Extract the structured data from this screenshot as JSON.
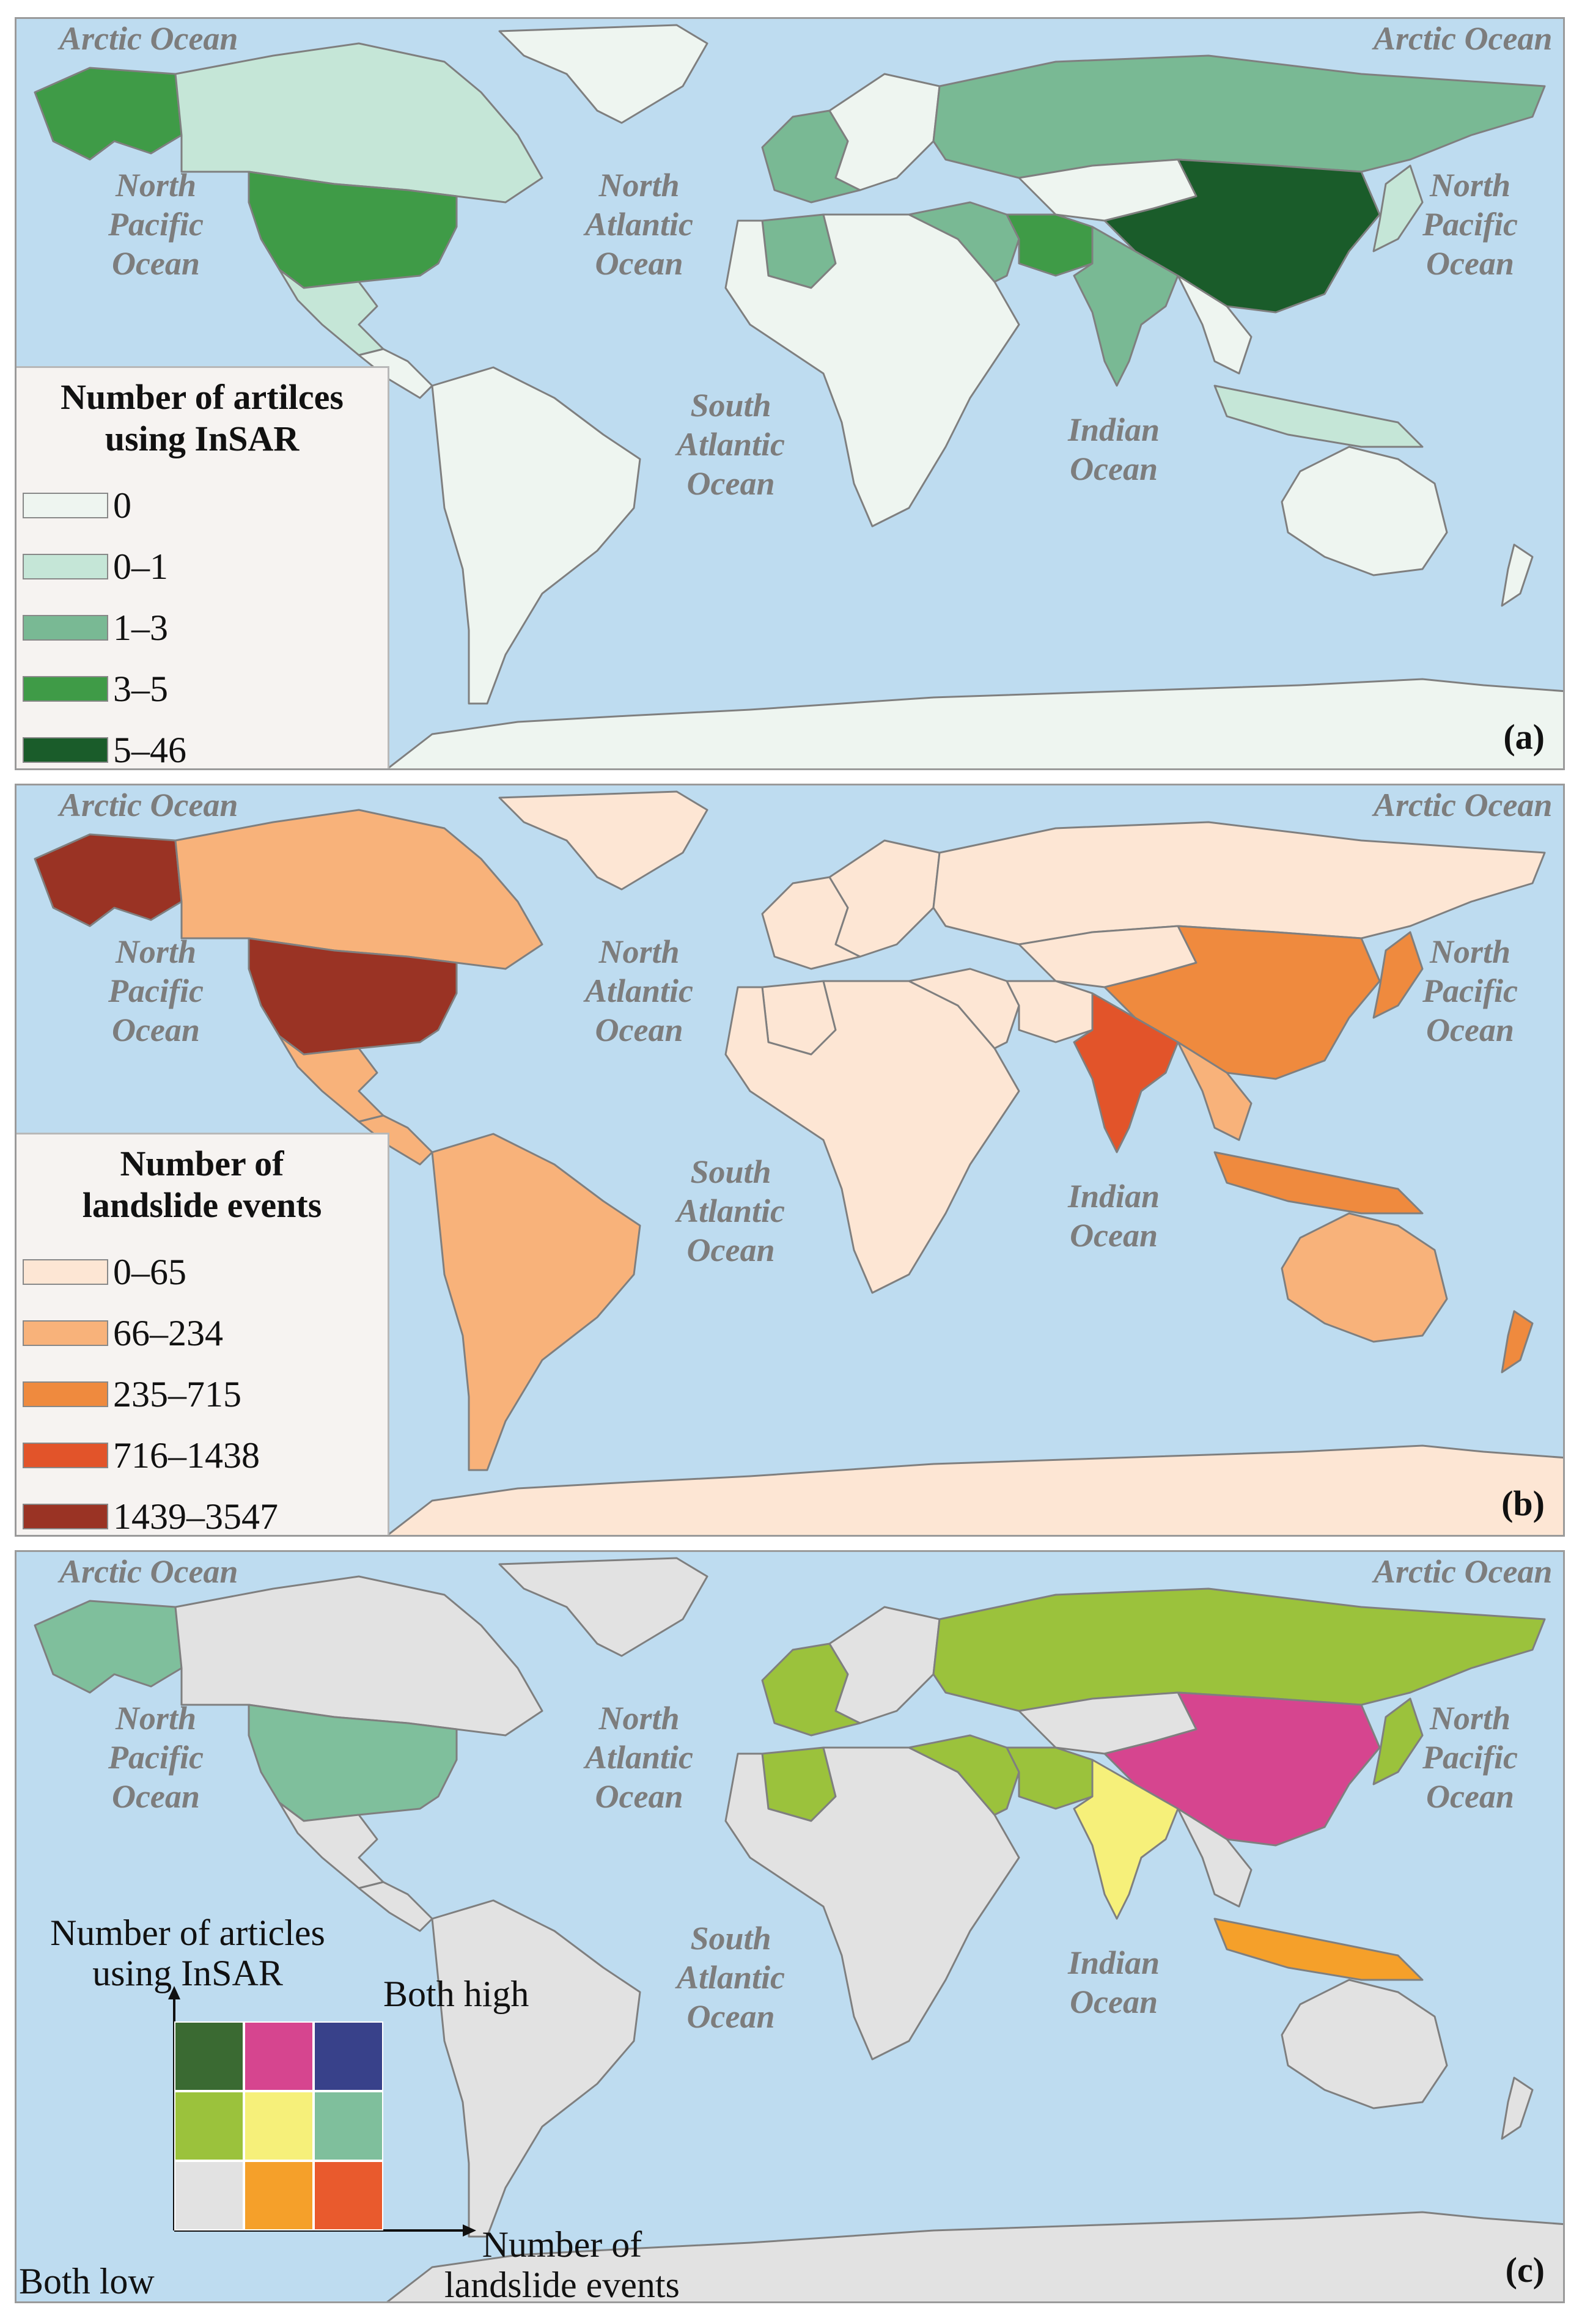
{
  "colors": {
    "ocean": "#bedcf0",
    "coast": "#7f7f7f",
    "antarctica_a": "#eef5f0",
    "antarctica_b": "#fde6d4",
    "antarctica_c": "#e2e2e2"
  },
  "ocean_labels": {
    "arctic_left": "Arctic Ocean",
    "arctic_right": "Arctic Ocean",
    "north_pacific_left": "North\nPacific\nOcean",
    "north_pacific_right": "North\nPacific\nOcean",
    "north_atlantic": "North\nAtlantic\nOcean",
    "south_atlantic": "South\nAtlantic\nOcean",
    "indian": "Indian\nOcean"
  },
  "panel_a": {
    "tag": "(a)",
    "legend_title": "Number of artilces\nusing InSAR",
    "legend": [
      {
        "label": "0",
        "color": "#eef5f0"
      },
      {
        "label": "0–1",
        "color": "#c5e6d7"
      },
      {
        "label": "1–3",
        "color": "#79b994"
      },
      {
        "label": "3–5",
        "color": "#3f9b47"
      },
      {
        "label": "5–46",
        "color": "#1a5c2a"
      }
    ],
    "regions": {
      "greenland": "#eef5f0",
      "alaska": "#3f9b47",
      "canada": "#c5e6d7",
      "usa": "#3f9b47",
      "mexico": "#c5e6d7",
      "central_america": "#eef5f0",
      "south_america": "#eef5f0",
      "europe_west": "#79b994",
      "europe_east": "#eef5f0",
      "russia": "#79b994",
      "africa": "#eef5f0",
      "algeria": "#79b994",
      "middle_east": "#79b994",
      "iran": "#3f9b47",
      "central_asia": "#eef5f0",
      "india": "#79b994",
      "china": "#1a5c2a",
      "japan": "#c5e6d7",
      "southeast_asia": "#eef5f0",
      "indonesia": "#c5e6d7",
      "australia": "#eef5f0",
      "new_zealand": "#eef5f0",
      "antarctica": "#eef5f0"
    }
  },
  "panel_b": {
    "tag": "(b)",
    "legend_title": "Number of\nlandslide events",
    "legend": [
      {
        "label": "0–65",
        "color": "#fde6d4"
      },
      {
        "label": "66–234",
        "color": "#f8b27a"
      },
      {
        "label": "235–715",
        "color": "#ef8a3e"
      },
      {
        "label": "716–1438",
        "color": "#e2542a"
      },
      {
        "label": "1439–3547",
        "color": "#9a3324"
      }
    ],
    "regions": {
      "greenland": "#fde6d4",
      "alaska": "#9a3324",
      "canada": "#f8b27a",
      "usa": "#9a3324",
      "mexico": "#f8b27a",
      "central_america": "#f8b27a",
      "south_america": "#f8b27a",
      "europe_west": "#fde6d4",
      "europe_east": "#fde6d4",
      "russia": "#fde6d4",
      "africa": "#fde6d4",
      "algeria": "#fde6d4",
      "middle_east": "#fde6d4",
      "iran": "#fde6d4",
      "central_asia": "#fde6d4",
      "india": "#e2542a",
      "china": "#ef8a3e",
      "japan": "#ef8a3e",
      "southeast_asia": "#f8b27a",
      "indonesia": "#ef8a3e",
      "australia": "#f8b27a",
      "new_zealand": "#ef8a3e",
      "antarctica": "#fde6d4"
    }
  },
  "panel_c": {
    "tag": "(c)",
    "y_axis_label": "Number of articles\nusing InSAR",
    "x_axis_label": "Number of\nlandslide events",
    "both_high": "Both high",
    "both_low": "Both low",
    "grid": [
      [
        "#3a6a32",
        "#d6458f",
        "#38418a"
      ],
      [
        "#9bc23c",
        "#f6f07a",
        "#7fbf9c"
      ],
      [
        "#e2e2e2",
        "#f5a02a",
        "#e95a2d"
      ]
    ],
    "regions": {
      "greenland": "#e2e2e2",
      "alaska": "#7fbf9c",
      "canada": "#e2e2e2",
      "usa": "#7fbf9c",
      "mexico": "#e2e2e2",
      "central_america": "#e2e2e2",
      "south_america": "#e2e2e2",
      "europe_west": "#9bc23c",
      "europe_east": "#e2e2e2",
      "russia": "#9bc23c",
      "africa": "#e2e2e2",
      "algeria": "#9bc23c",
      "middle_east": "#9bc23c",
      "iran": "#9bc23c",
      "central_asia": "#e2e2e2",
      "india": "#f6f07a",
      "china": "#d6458f",
      "japan": "#9bc23c",
      "southeast_asia": "#e2e2e2",
      "indonesia": "#f5a02a",
      "australia": "#e2e2e2",
      "new_zealand": "#e2e2e2",
      "antarctica": "#e2e2e2"
    }
  }
}
